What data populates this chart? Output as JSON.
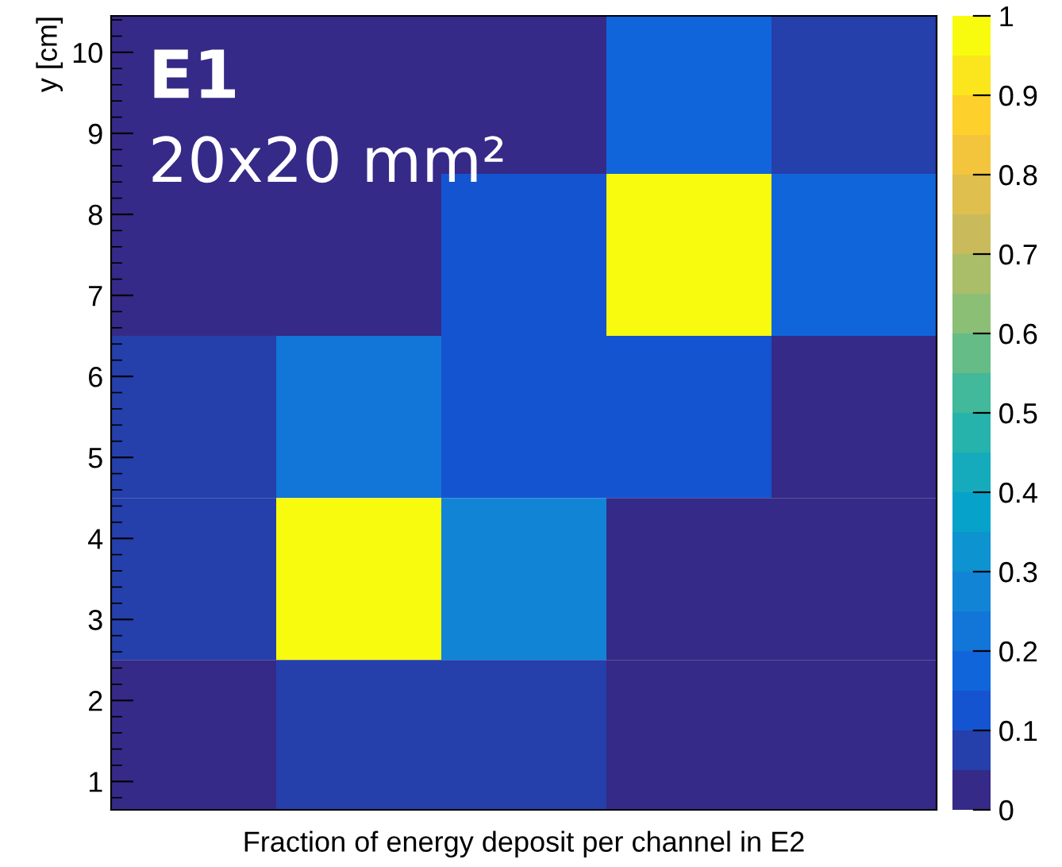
{
  "chart_data": {
    "type": "heatmap",
    "xlabel": "Fraction of energy deposit per channel in E2",
    "ylabel": "y [cm]",
    "annotations": [
      "E1",
      "20x20 mm²"
    ],
    "categories": [
      null,
      null,
      null,
      null,
      null
    ],
    "y": [
      9.5,
      7.5,
      5.5,
      3.5,
      1.5
    ],
    "cells": [
      [
        0.02,
        0.02,
        0.02,
        0.17,
        0.07
      ],
      [
        0.02,
        0.02,
        0.12,
        1,
        0.17
      ],
      [
        0.07,
        0.22,
        0.12,
        0.12,
        0.02
      ],
      [
        0.07,
        1,
        0.27,
        0.02,
        0.02
      ],
      [
        0.02,
        0.07,
        0.07,
        0.02,
        0.02
      ]
    ],
    "ylim": [
      0.65,
      10.45
    ],
    "yticks": [
      1,
      2,
      3,
      4,
      5,
      6,
      7,
      8,
      9,
      10
    ],
    "clim": [
      0,
      1
    ],
    "cticks": [
      0,
      0.1,
      0.2,
      0.3,
      0.4,
      0.5,
      0.6,
      0.7,
      0.8,
      0.9,
      1
    ]
  }
}
